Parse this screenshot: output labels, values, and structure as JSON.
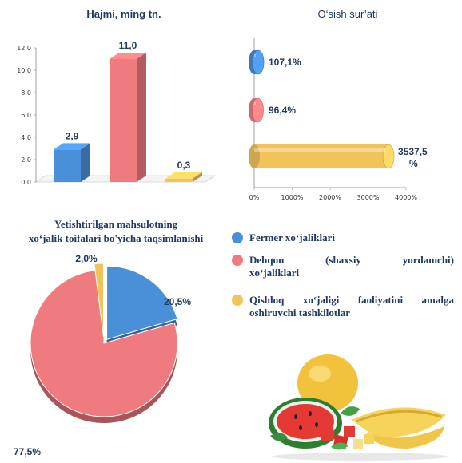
{
  "chart_data": [
    {
      "type": "bar",
      "title": "Hajmi, ming tn.",
      "categories": [
        "Fermer xo‘jaliklari",
        "Dehqon (shaxsiy yordamchi) xo‘jaliklari",
        "Qishloq xo‘jaligi faoliyatini amalga oshiruvchi tashkilotlar"
      ],
      "values": [
        2.9,
        11.0,
        0.3
      ],
      "value_labels": [
        "2,9",
        "11,0",
        "0,3"
      ],
      "y_ticks": [
        "0,0",
        "2,0",
        "4,0",
        "6,0",
        "8,0",
        "10,0",
        "12,0"
      ],
      "ylim": [
        0,
        12
      ],
      "colors": [
        "#4a90d9",
        "#f07b7e",
        "#f2c35a"
      ],
      "grid": false
    },
    {
      "type": "bar",
      "orientation": "horizontal",
      "title": "O‘sish sur’ati",
      "categories": [
        "Fermer xo‘jaliklari",
        "Dehqon (shaxsiy yordamchi) xo‘jaliklari",
        "Qishloq xo‘jaligi faoliyatini amalga oshiruvchi tashkilotlar"
      ],
      "values": [
        107.1,
        96.4,
        3537.5
      ],
      "value_labels": [
        "107,1%",
        "96,4%",
        "3537,5 %"
      ],
      "x_ticks": [
        "0%",
        "1000%",
        "2000%",
        "3000%",
        "4000%"
      ],
      "xlim": [
        0,
        4000
      ],
      "colors": [
        "#4a90d9",
        "#f07b7e",
        "#f2c35a"
      ],
      "grid": false
    },
    {
      "type": "pie",
      "title_lines": [
        "Yetishtirilgan mahsulotning",
        "xo‘jalik toifalari bo'yicha taqsimlanishi"
      ],
      "categories": [
        "Fermer xo‘jaliklari",
        "Dehqon (shaxsiy yordamchi) xo‘jaliklari",
        "Qishloq xo‘jaligi faoliyatini amalga oshiruvchi tashkilotlar"
      ],
      "values": [
        20.5,
        77.5,
        2.0
      ],
      "value_labels": [
        "20,5%",
        "77,5%",
        "2,0%"
      ],
      "colors": [
        "#4a90d9",
        "#f07b7e",
        "#f2c35a"
      ],
      "legend_position": "right"
    }
  ],
  "legend": [
    {
      "label": "Fermer xo‘jaliklari",
      "color": "#4a90d9"
    },
    {
      "label": "Dehqon (shaxsiy yordamchi) xo‘jaliklari",
      "color": "#f07b7e"
    },
    {
      "label": "Qishloq xo‘jaligi faoliyatini amalga oshiruvchi tashkilotlar",
      "color": "#f2c35a"
    }
  ],
  "decor": {
    "illustration": "fruit-illustration"
  }
}
